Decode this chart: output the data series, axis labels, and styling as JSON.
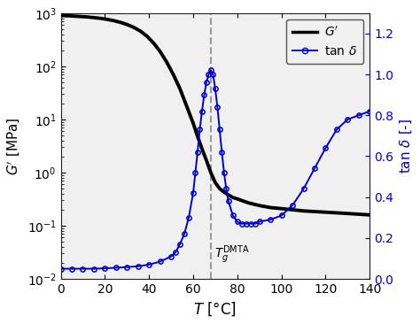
{
  "T_min": 0,
  "T_max": 140,
  "Tg_line": 68,
  "G_ylim_log_min": -2,
  "G_ylim_log_max": 3,
  "tan_ylim": [
    0.0,
    1.3
  ],
  "tan_yticks": [
    0.0,
    0.2,
    0.4,
    0.6,
    0.8,
    1.0,
    1.2
  ],
  "xlabel": "$T$ [°C]",
  "ylabel_left": "$G'$ [MPa]",
  "ylabel_right": "tan $\\delta$ [-]",
  "line_color_G": "#000000",
  "line_color_tan": "#0000cc",
  "dashed_color": "#999999",
  "bg_color": "#f0f0f0",
  "xticks": [
    0,
    20,
    40,
    60,
    80,
    100,
    120,
    140
  ],
  "G_T": [
    0,
    3,
    6,
    9,
    12,
    15,
    18,
    21,
    24,
    27,
    30,
    33,
    36,
    39,
    42,
    45,
    48,
    51,
    54,
    57,
    60,
    62,
    64,
    66,
    68,
    70,
    72,
    74,
    76,
    78,
    80,
    85,
    90,
    95,
    100,
    105,
    110,
    115,
    120,
    125,
    130,
    135,
    140
  ],
  "G_vals": [
    900,
    890,
    875,
    860,
    845,
    820,
    795,
    760,
    720,
    670,
    610,
    540,
    460,
    370,
    275,
    190,
    120,
    70,
    38,
    18,
    8.5,
    4.8,
    2.8,
    1.7,
    1.0,
    0.65,
    0.5,
    0.43,
    0.38,
    0.34,
    0.32,
    0.27,
    0.24,
    0.22,
    0.21,
    0.2,
    0.19,
    0.185,
    0.18,
    0.175,
    0.17,
    0.165,
    0.16
  ],
  "tan_T": [
    0,
    5,
    10,
    15,
    20,
    25,
    30,
    35,
    40,
    45,
    50,
    52,
    54,
    56,
    58,
    60,
    61,
    62,
    63,
    64,
    65,
    66,
    67,
    68,
    69,
    70,
    71,
    72,
    73,
    74,
    75,
    76,
    78,
    80,
    82,
    84,
    86,
    88,
    90,
    95,
    100,
    105,
    110,
    115,
    120,
    125,
    130,
    135,
    140
  ],
  "tan_vals": [
    0.05,
    0.05,
    0.05,
    0.05,
    0.052,
    0.055,
    0.058,
    0.062,
    0.07,
    0.085,
    0.11,
    0.13,
    0.17,
    0.22,
    0.3,
    0.42,
    0.52,
    0.62,
    0.73,
    0.82,
    0.9,
    0.96,
    1.0,
    1.02,
    1.0,
    0.93,
    0.84,
    0.73,
    0.62,
    0.52,
    0.44,
    0.38,
    0.31,
    0.28,
    0.27,
    0.27,
    0.27,
    0.27,
    0.28,
    0.29,
    0.31,
    0.36,
    0.44,
    0.54,
    0.64,
    0.73,
    0.78,
    0.8,
    0.82
  ]
}
